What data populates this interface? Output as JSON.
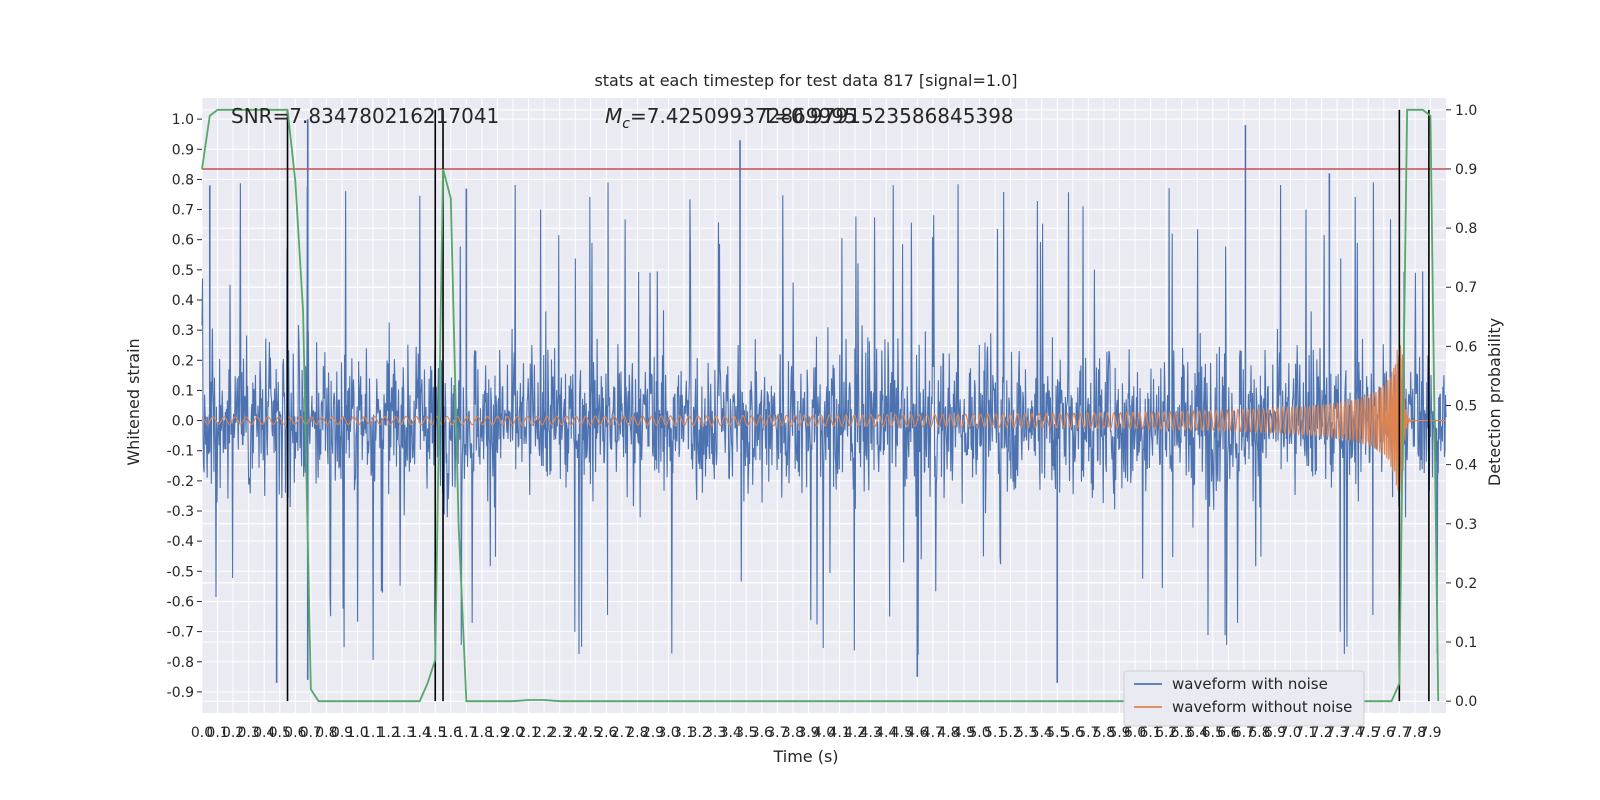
{
  "chart_data": {
    "type": "line",
    "title": "stats at each timestep for test data 817 [signal=1.0]",
    "xlabel": "Time (s)",
    "ylabel": "Whitened strain",
    "y2label": "Detection probability",
    "xlim": [
      0,
      8.0
    ],
    "ylim": [
      -0.97,
      1.07
    ],
    "y2lim": [
      -0.02,
      1.02
    ],
    "x_ticks": [
      "0.0",
      "0.1",
      "0.2",
      "0.3",
      "0.4",
      "0.5",
      "0.6",
      "0.7",
      "0.8",
      "0.9",
      "1.0",
      "1.1",
      "1.2",
      "1.3",
      "1.4",
      "1.5",
      "1.6",
      "1.7",
      "1.8",
      "1.9",
      "2.0",
      "2.1",
      "2.2",
      "2.3",
      "2.4",
      "2.5",
      "2.6",
      "2.7",
      "2.8",
      "2.9",
      "3.0",
      "3.1",
      "3.2",
      "3.3",
      "3.4",
      "3.5",
      "3.6",
      "3.7",
      "3.8",
      "3.9",
      "4.0",
      "4.1",
      "4.2",
      "4.3",
      "4.4",
      "4.5",
      "4.6",
      "4.7",
      "4.8",
      "4.9",
      "5.0",
      "5.1",
      "5.2",
      "5.3",
      "5.4",
      "5.5",
      "5.6",
      "5.7",
      "5.8",
      "5.9",
      "6.0",
      "6.1",
      "6.2",
      "6.3",
      "6.4",
      "6.5",
      "6.6",
      "6.7",
      "6.8",
      "6.9",
      "7.0",
      "7.1",
      "7.2",
      "7.3",
      "7.4",
      "7.5",
      "7.6",
      "7.7",
      "7.8",
      "7.9"
    ],
    "y_ticks": [
      "-0.9",
      "-0.8",
      "-0.7",
      "-0.6",
      "-0.5",
      "-0.4",
      "-0.3",
      "-0.2",
      "-0.1",
      "0.0",
      "0.1",
      "0.2",
      "0.3",
      "0.4",
      "0.5",
      "0.6",
      "0.7",
      "0.8",
      "0.9",
      "1.0"
    ],
    "y2_ticks": [
      "0.0",
      "0.1",
      "0.2",
      "0.3",
      "0.4",
      "0.5",
      "0.6",
      "0.7",
      "0.8",
      "0.9",
      "1.0"
    ],
    "annotations": {
      "snr": "SNR=7.834780216217041",
      "mc_symbol": "M",
      "mc_subscript": "c",
      "mc_value": "=7.425099372869995",
      "t": "T=0.9791523586845398"
    },
    "threshold": 0.9,
    "vertical_lines": [
      0.55,
      1.5,
      1.55,
      7.7,
      7.89
    ],
    "series": [
      {
        "name": "waveform with noise",
        "color": "#4c72b0",
        "envelope_p95": 0.43,
        "envelope_peak": 1.0,
        "notable_peaks": [
          [
            0.05,
            0.78
          ],
          [
            0.68,
            1.0
          ],
          [
            1.7,
            0.77
          ],
          [
            3.46,
            0.93
          ],
          [
            6.71,
            0.98
          ],
          [
            7.25,
            0.82
          ],
          [
            0.48,
            -0.87
          ],
          [
            0.68,
            -0.86
          ],
          [
            5.5,
            -0.87
          ],
          [
            4.6,
            -0.85
          ]
        ]
      },
      {
        "name": "waveform without noise",
        "color": "#dd8452",
        "t_merger": 7.72,
        "amp_start": 0.012,
        "amp_peak": 0.25,
        "cycles": 150
      },
      {
        "name": "detection probability",
        "color": "#55a868",
        "x": [
          0.0,
          0.05,
          0.1,
          0.15,
          0.2,
          0.25,
          0.3,
          0.35,
          0.4,
          0.45,
          0.5,
          0.55,
          0.6,
          0.65,
          0.7,
          0.75,
          0.8,
          1.4,
          1.45,
          1.5,
          1.55,
          1.6,
          1.65,
          1.7,
          1.75,
          1.8,
          2.0,
          2.1,
          2.2,
          2.3,
          7.65,
          7.7,
          7.75,
          7.8,
          7.85,
          7.9,
          7.95
        ],
        "values": [
          0.9,
          0.99,
          1.0,
          1.0,
          1.0,
          1.0,
          1.0,
          1.0,
          1.0,
          1.0,
          1.0,
          1.0,
          0.88,
          0.66,
          0.02,
          0.0,
          0.0,
          0.0,
          0.03,
          0.07,
          0.9,
          0.85,
          0.3,
          0.0,
          0.0,
          0.0,
          0.0,
          0.002,
          0.002,
          0.0,
          0.0,
          0.03,
          1.0,
          1.0,
          1.0,
          0.99,
          0.0
        ]
      }
    ],
    "legend": {
      "position": "lower-right",
      "entries": [
        {
          "label": "waveform with noise",
          "color": "#4c72b0"
        },
        {
          "label": "waveform without noise",
          "color": "#dd8452"
        }
      ]
    },
    "colors": {
      "plot_bg": "#eaeaf2",
      "grid": "#ffffff",
      "threshold_line": "#c44e52",
      "vertical_line": "#000000"
    }
  }
}
